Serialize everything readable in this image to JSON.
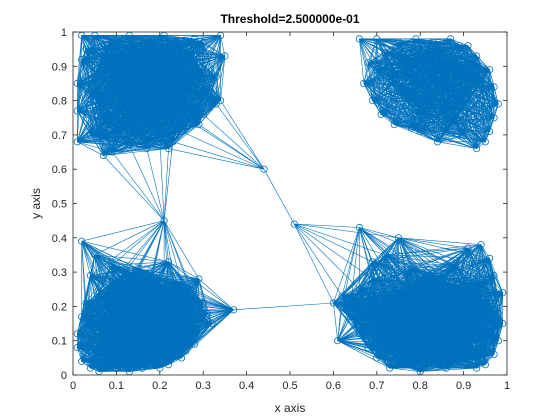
{
  "chart_data": {
    "type": "scatter",
    "title": "Threshold=2.500000e-01",
    "xlabel": "x axis",
    "ylabel": "y axis",
    "xlim": [
      0,
      1
    ],
    "ylim": [
      0,
      1
    ],
    "xticks": [
      "0",
      "0.1",
      "0.2",
      "0.3",
      "0.4",
      "0.5",
      "0.6",
      "0.7",
      "0.8",
      "0.9",
      "1"
    ],
    "yticks": [
      "0",
      "0.1",
      "0.2",
      "0.3",
      "0.4",
      "0.5",
      "0.6",
      "0.7",
      "0.8",
      "0.9",
      "1"
    ],
    "grid": false,
    "color": "#0072BD",
    "threshold": 0.25,
    "series": [
      {
        "x": [
          0.02,
          0.05,
          0.09,
          0.13,
          0.17,
          0.21,
          0.24,
          0.28,
          0.3,
          0.34,
          0.35,
          0.33,
          0.31,
          0.34,
          0.3,
          0.27,
          0.25,
          0.23,
          0.22,
          0.2,
          0.17,
          0.15,
          0.13,
          0.09,
          0.06,
          0.04,
          0.01,
          0.01,
          0.01,
          0.02,
          0.03,
          0.08,
          0.1,
          0.12,
          0.19,
          0.23,
          0.28,
          0.09,
          0.06,
          0.13,
          0.17,
          0.21,
          0.24,
          0.27,
          0.15,
          0.11,
          0.07,
          0.2,
          0.18,
          0.14,
          0.05,
          0.26,
          0.12,
          0.16,
          0.22,
          0.08,
          0.3,
          0.29,
          0.04,
          0.11,
          0.18,
          0.25,
          0.14,
          0.23,
          0.1,
          0.19,
          0.07,
          0.27,
          0.16,
          0.21
        ],
        "y": [
          0.99,
          0.99,
          0.98,
          0.99,
          0.98,
          0.99,
          0.97,
          0.98,
          0.97,
          0.99,
          0.93,
          0.87,
          0.82,
          0.8,
          0.76,
          0.74,
          0.71,
          0.68,
          0.66,
          0.69,
          0.66,
          0.7,
          0.67,
          0.65,
          0.69,
          0.7,
          0.68,
          0.77,
          0.85,
          0.92,
          0.95,
          0.93,
          0.9,
          0.92,
          0.93,
          0.91,
          0.92,
          0.85,
          0.8,
          0.83,
          0.86,
          0.82,
          0.88,
          0.84,
          0.76,
          0.78,
          0.74,
          0.78,
          0.89,
          0.95,
          0.88,
          0.78,
          0.72,
          0.81,
          0.75,
          0.96,
          0.88,
          0.73,
          0.82,
          0.87,
          0.74,
          0.83,
          0.89,
          0.95,
          0.71,
          0.96,
          0.92,
          0.94,
          0.85,
          0.87
        ]
      },
      {
        "x": [
          0.66,
          0.7,
          0.75,
          0.79,
          0.83,
          0.87,
          0.89,
          0.91,
          0.93,
          0.96,
          0.97,
          0.98,
          0.97,
          0.96,
          0.95,
          0.93,
          0.9,
          0.86,
          0.84,
          0.8,
          0.78,
          0.74,
          0.71,
          0.69,
          0.67,
          0.68,
          0.72,
          0.76,
          0.81,
          0.85,
          0.88,
          0.92,
          0.94,
          0.91,
          0.87,
          0.83,
          0.79,
          0.75,
          0.82,
          0.86,
          0.9,
          0.78,
          0.73,
          0.84,
          0.8,
          0.88,
          0.77,
          0.93,
          0.7,
          0.85
        ],
        "y": [
          0.98,
          0.98,
          0.97,
          0.98,
          0.97,
          0.98,
          0.96,
          0.96,
          0.93,
          0.89,
          0.84,
          0.79,
          0.75,
          0.71,
          0.68,
          0.66,
          0.7,
          0.71,
          0.68,
          0.71,
          0.72,
          0.73,
          0.76,
          0.8,
          0.85,
          0.91,
          0.94,
          0.92,
          0.93,
          0.92,
          0.9,
          0.88,
          0.86,
          0.82,
          0.84,
          0.88,
          0.86,
          0.83,
          0.8,
          0.77,
          0.79,
          0.9,
          0.87,
          0.95,
          0.76,
          0.74,
          0.81,
          0.91,
          0.89,
          0.85
        ]
      },
      {
        "x": [
          0.02,
          0.05,
          0.09,
          0.12,
          0.15,
          0.18,
          0.22,
          0.25,
          0.27,
          0.29,
          0.28,
          0.3,
          0.31,
          0.32,
          0.29,
          0.28,
          0.26,
          0.25,
          0.22,
          0.2,
          0.18,
          0.16,
          0.13,
          0.1,
          0.08,
          0.06,
          0.04,
          0.02,
          0.01,
          0.01,
          0.02,
          0.03,
          0.06,
          0.04,
          0.08,
          0.1,
          0.14,
          0.19,
          0.23,
          0.21,
          0.17,
          0.12,
          0.07,
          0.11,
          0.15,
          0.2,
          0.24,
          0.27,
          0.09,
          0.13,
          0.18,
          0.05,
          0.16,
          0.22,
          0.26,
          0.1,
          0.14,
          0.03,
          0.19,
          0.23,
          0.07,
          0.12,
          0.17,
          0.21,
          0.25,
          0.08,
          0.15,
          0.24,
          0.11,
          0.2
        ],
        "y": [
          0.39,
          0.35,
          0.32,
          0.3,
          0.31,
          0.29,
          0.33,
          0.27,
          0.25,
          0.28,
          0.23,
          0.21,
          0.18,
          0.15,
          0.12,
          0.09,
          0.07,
          0.05,
          0.03,
          0.02,
          0.04,
          0.02,
          0.01,
          0.02,
          0.03,
          0.01,
          0.02,
          0.04,
          0.08,
          0.12,
          0.17,
          0.21,
          0.24,
          0.29,
          0.2,
          0.14,
          0.09,
          0.07,
          0.11,
          0.17,
          0.22,
          0.25,
          0.13,
          0.05,
          0.18,
          0.12,
          0.16,
          0.19,
          0.27,
          0.1,
          0.26,
          0.06,
          0.05,
          0.24,
          0.14,
          0.18,
          0.28,
          0.15,
          0.16,
          0.08,
          0.1,
          0.14,
          0.19,
          0.21,
          0.1,
          0.06,
          0.12,
          0.22,
          0.23,
          0.09
        ]
      },
      {
        "x": [
          0.62,
          0.64,
          0.66,
          0.69,
          0.72,
          0.75,
          0.78,
          0.82,
          0.85,
          0.88,
          0.91,
          0.94,
          0.96,
          0.97,
          0.99,
          0.99,
          0.98,
          0.97,
          0.95,
          0.93,
          0.9,
          0.86,
          0.83,
          0.8,
          0.77,
          0.73,
          0.7,
          0.68,
          0.66,
          0.64,
          0.62,
          0.61,
          0.66,
          0.69,
          0.72,
          0.7,
          0.74,
          0.77,
          0.79,
          0.81,
          0.84,
          0.87,
          0.89,
          0.92,
          0.95,
          0.93,
          0.9,
          0.86,
          0.82,
          0.79,
          0.76,
          0.73,
          0.85,
          0.88,
          0.91,
          0.8,
          0.75,
          0.71,
          0.94,
          0.97,
          0.83,
          0.87,
          0.78,
          0.92,
          0.68,
          0.96,
          0.74,
          0.89,
          0.82,
          0.86,
          0.72,
          0.95,
          0.79,
          0.9,
          0.76,
          0.84,
          0.98,
          0.7,
          0.93,
          0.81
        ],
        "y": [
          0.23,
          0.21,
          0.43,
          0.33,
          0.35,
          0.4,
          0.31,
          0.29,
          0.26,
          0.32,
          0.37,
          0.38,
          0.34,
          0.29,
          0.24,
          0.15,
          0.1,
          0.06,
          0.03,
          0.02,
          0.04,
          0.02,
          0.03,
          0.01,
          0.03,
          0.02,
          0.05,
          0.08,
          0.12,
          0.17,
          0.2,
          0.1,
          0.25,
          0.28,
          0.22,
          0.15,
          0.08,
          0.12,
          0.18,
          0.23,
          0.2,
          0.14,
          0.07,
          0.11,
          0.19,
          0.26,
          0.23,
          0.16,
          0.09,
          0.05,
          0.14,
          0.19,
          0.28,
          0.22,
          0.15,
          0.27,
          0.24,
          0.11,
          0.06,
          0.12,
          0.06,
          0.1,
          0.21,
          0.24,
          0.18,
          0.21,
          0.17,
          0.04,
          0.13,
          0.18,
          0.08,
          0.27,
          0.16,
          0.09,
          0.03,
          0.05,
          0.18,
          0.21,
          0.14,
          0.25
        ]
      },
      {
        "x": [
          0.33,
          0.37,
          0.21,
          0.07,
          0.44,
          0.51,
          0.6
        ],
        "y": [
          0.79,
          0.19,
          0.45,
          0.64,
          0.6,
          0.44,
          0.21
        ]
      }
    ]
  }
}
